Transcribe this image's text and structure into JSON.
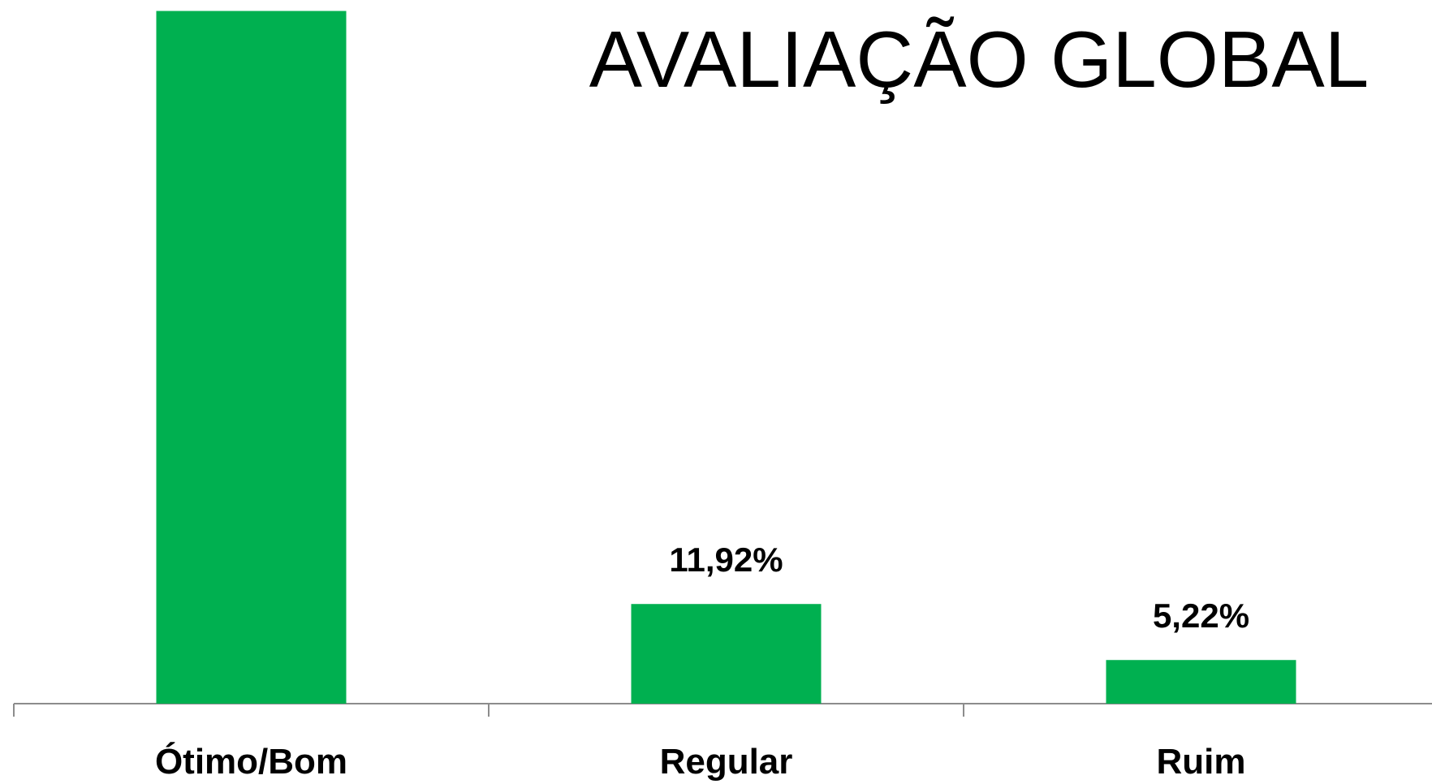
{
  "chart_data": {
    "type": "bar",
    "title": "AVALIAÇÃO GLOBAL",
    "categories": [
      "Ótimo/Bom",
      "Regular",
      "Ruim"
    ],
    "values": [
      82.86,
      11.92,
      5.22
    ],
    "value_labels": [
      null,
      "11,92%",
      "5,22%"
    ],
    "color": "#00b050"
  }
}
